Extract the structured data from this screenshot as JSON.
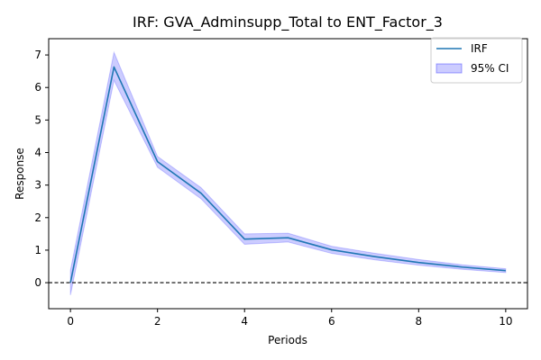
{
  "chart_data": {
    "type": "line",
    "title": "IRF: GVA_Adminsupp_Total to ENT_Factor_3",
    "xlabel": "Periods",
    "ylabel": "Response",
    "x": [
      0,
      1,
      2,
      3,
      4,
      5,
      6,
      7,
      8,
      9,
      10
    ],
    "xticks": [
      0,
      2,
      4,
      6,
      8,
      10
    ],
    "yticks": [
      0,
      1,
      2,
      3,
      4,
      5,
      6,
      7
    ],
    "xlim": [
      -0.5,
      10.5
    ],
    "ylim": [
      -0.8,
      7.5
    ],
    "series": [
      {
        "name": "IRF",
        "values": [
          0.0,
          6.63,
          3.72,
          2.75,
          1.34,
          1.38,
          1.01,
          0.8,
          0.62,
          0.48,
          0.37
        ],
        "color": "#1f77b4"
      }
    ],
    "confidence_band": {
      "name": "95% CI",
      "lower": [
        -0.38,
        6.22,
        3.55,
        2.58,
        1.18,
        1.25,
        0.9,
        0.7,
        0.54,
        0.41,
        0.31
      ],
      "upper": [
        0.38,
        7.08,
        3.88,
        2.92,
        1.5,
        1.52,
        1.12,
        0.9,
        0.71,
        0.55,
        0.43
      ],
      "fill_color": "#0000ff",
      "fill_opacity": 0.2
    },
    "reference_line": {
      "y": 0,
      "style": "dashed",
      "color": "#000000"
    },
    "legend": {
      "position": "top-right",
      "entries": [
        "IRF",
        "95% CI"
      ]
    },
    "grid": false
  }
}
